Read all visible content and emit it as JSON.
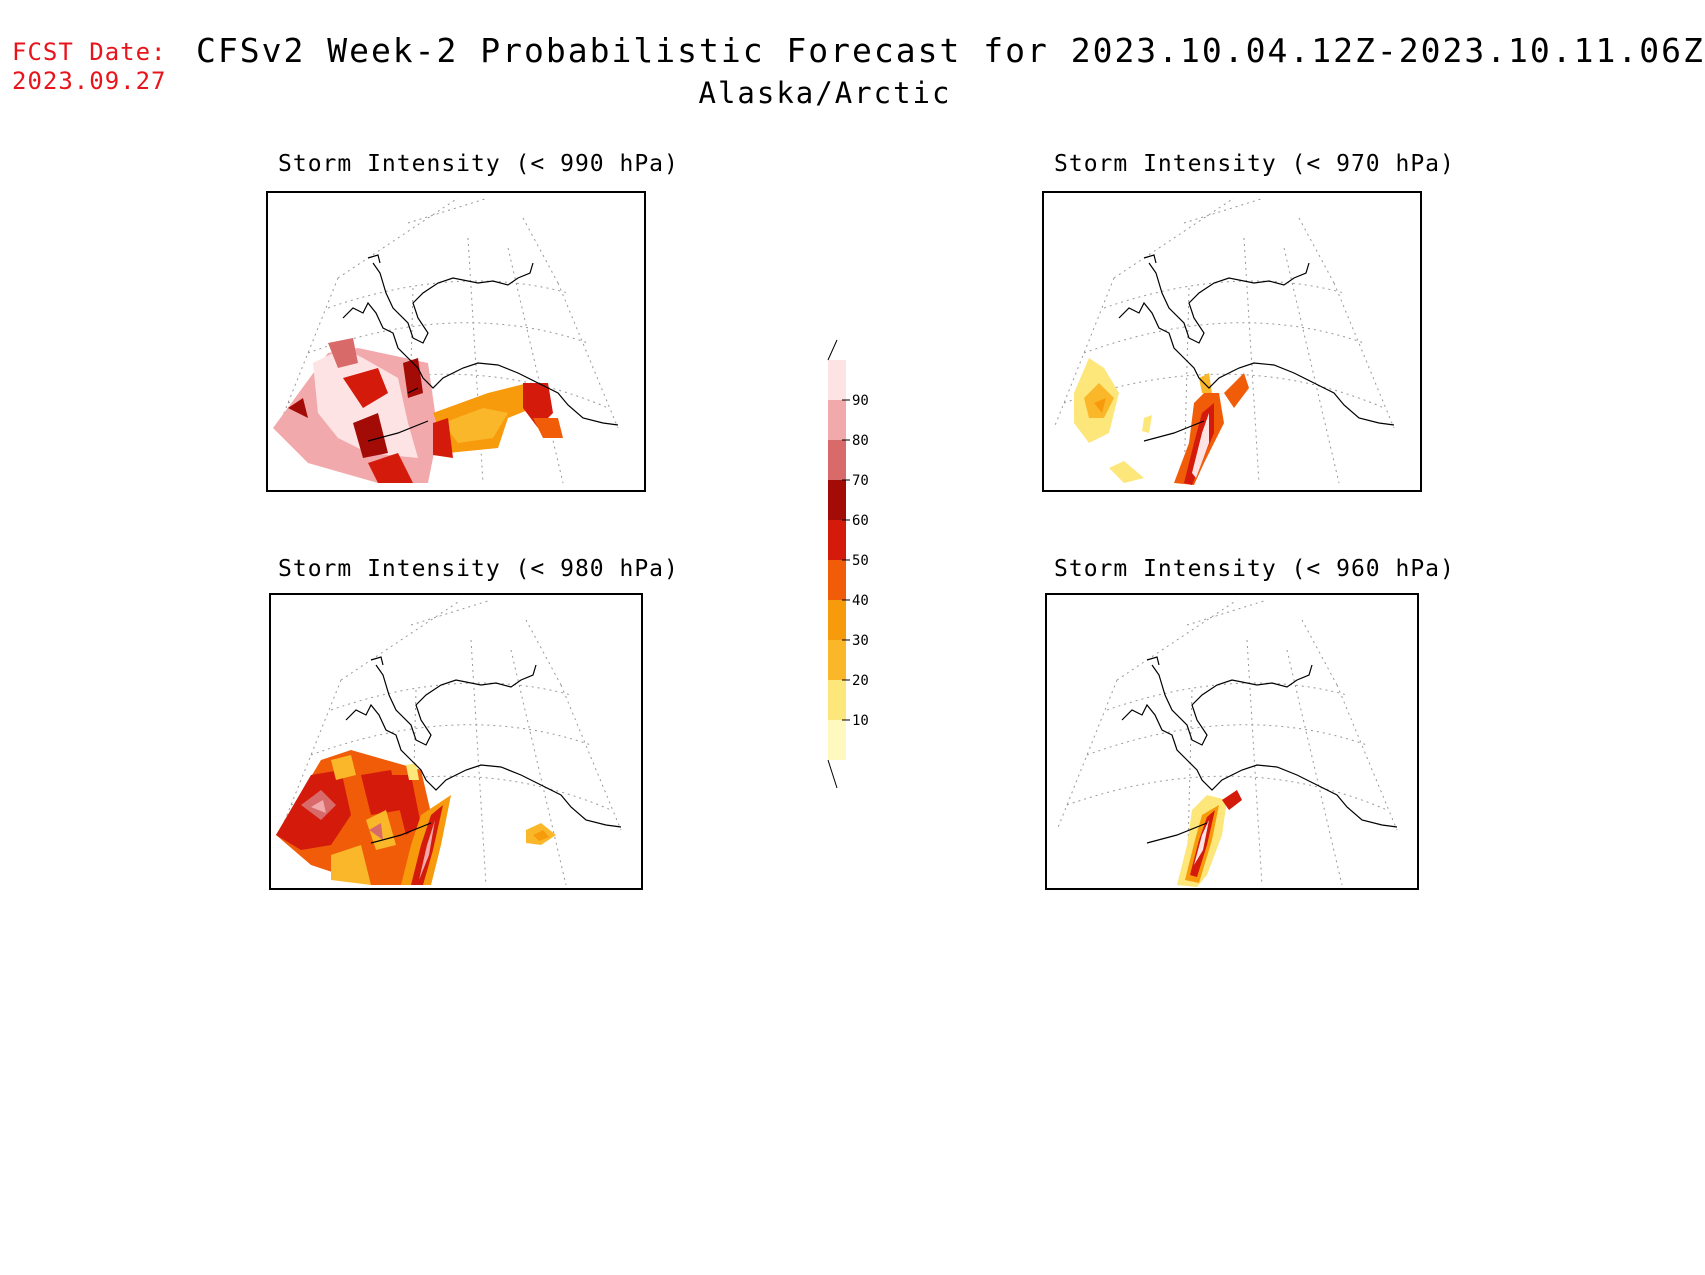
{
  "fcst": {
    "label": "FCST Date:",
    "date": "2023.09.27"
  },
  "title": "CFSv2 Week-2 Probabilistic Forecast for 2023.10.04.12Z-2023.10.11.06Z",
  "subtitle": "Alaska/Arctic",
  "panels": [
    {
      "title": "Storm Intensity (< 990 hPa)",
      "threshold_hpa": 990
    },
    {
      "title": "Storm Intensity (< 970 hPa)",
      "threshold_hpa": 970
    },
    {
      "title": "Storm Intensity (< 980 hPa)",
      "threshold_hpa": 980
    },
    {
      "title": "Storm Intensity (< 960 hPa)",
      "threshold_hpa": 960
    }
  ],
  "colorbar": {
    "levels": [
      "10",
      "20",
      "30",
      "40",
      "50",
      "60",
      "70",
      "80",
      "90"
    ],
    "colors": [
      "#fff9c0",
      "#fde67a",
      "#fbb72a",
      "#f79a0c",
      "#f05c08",
      "#d41a0a",
      "#a30b06",
      "#d96a6a",
      "#f2a9ab",
      "#fde3e3"
    ]
  }
}
